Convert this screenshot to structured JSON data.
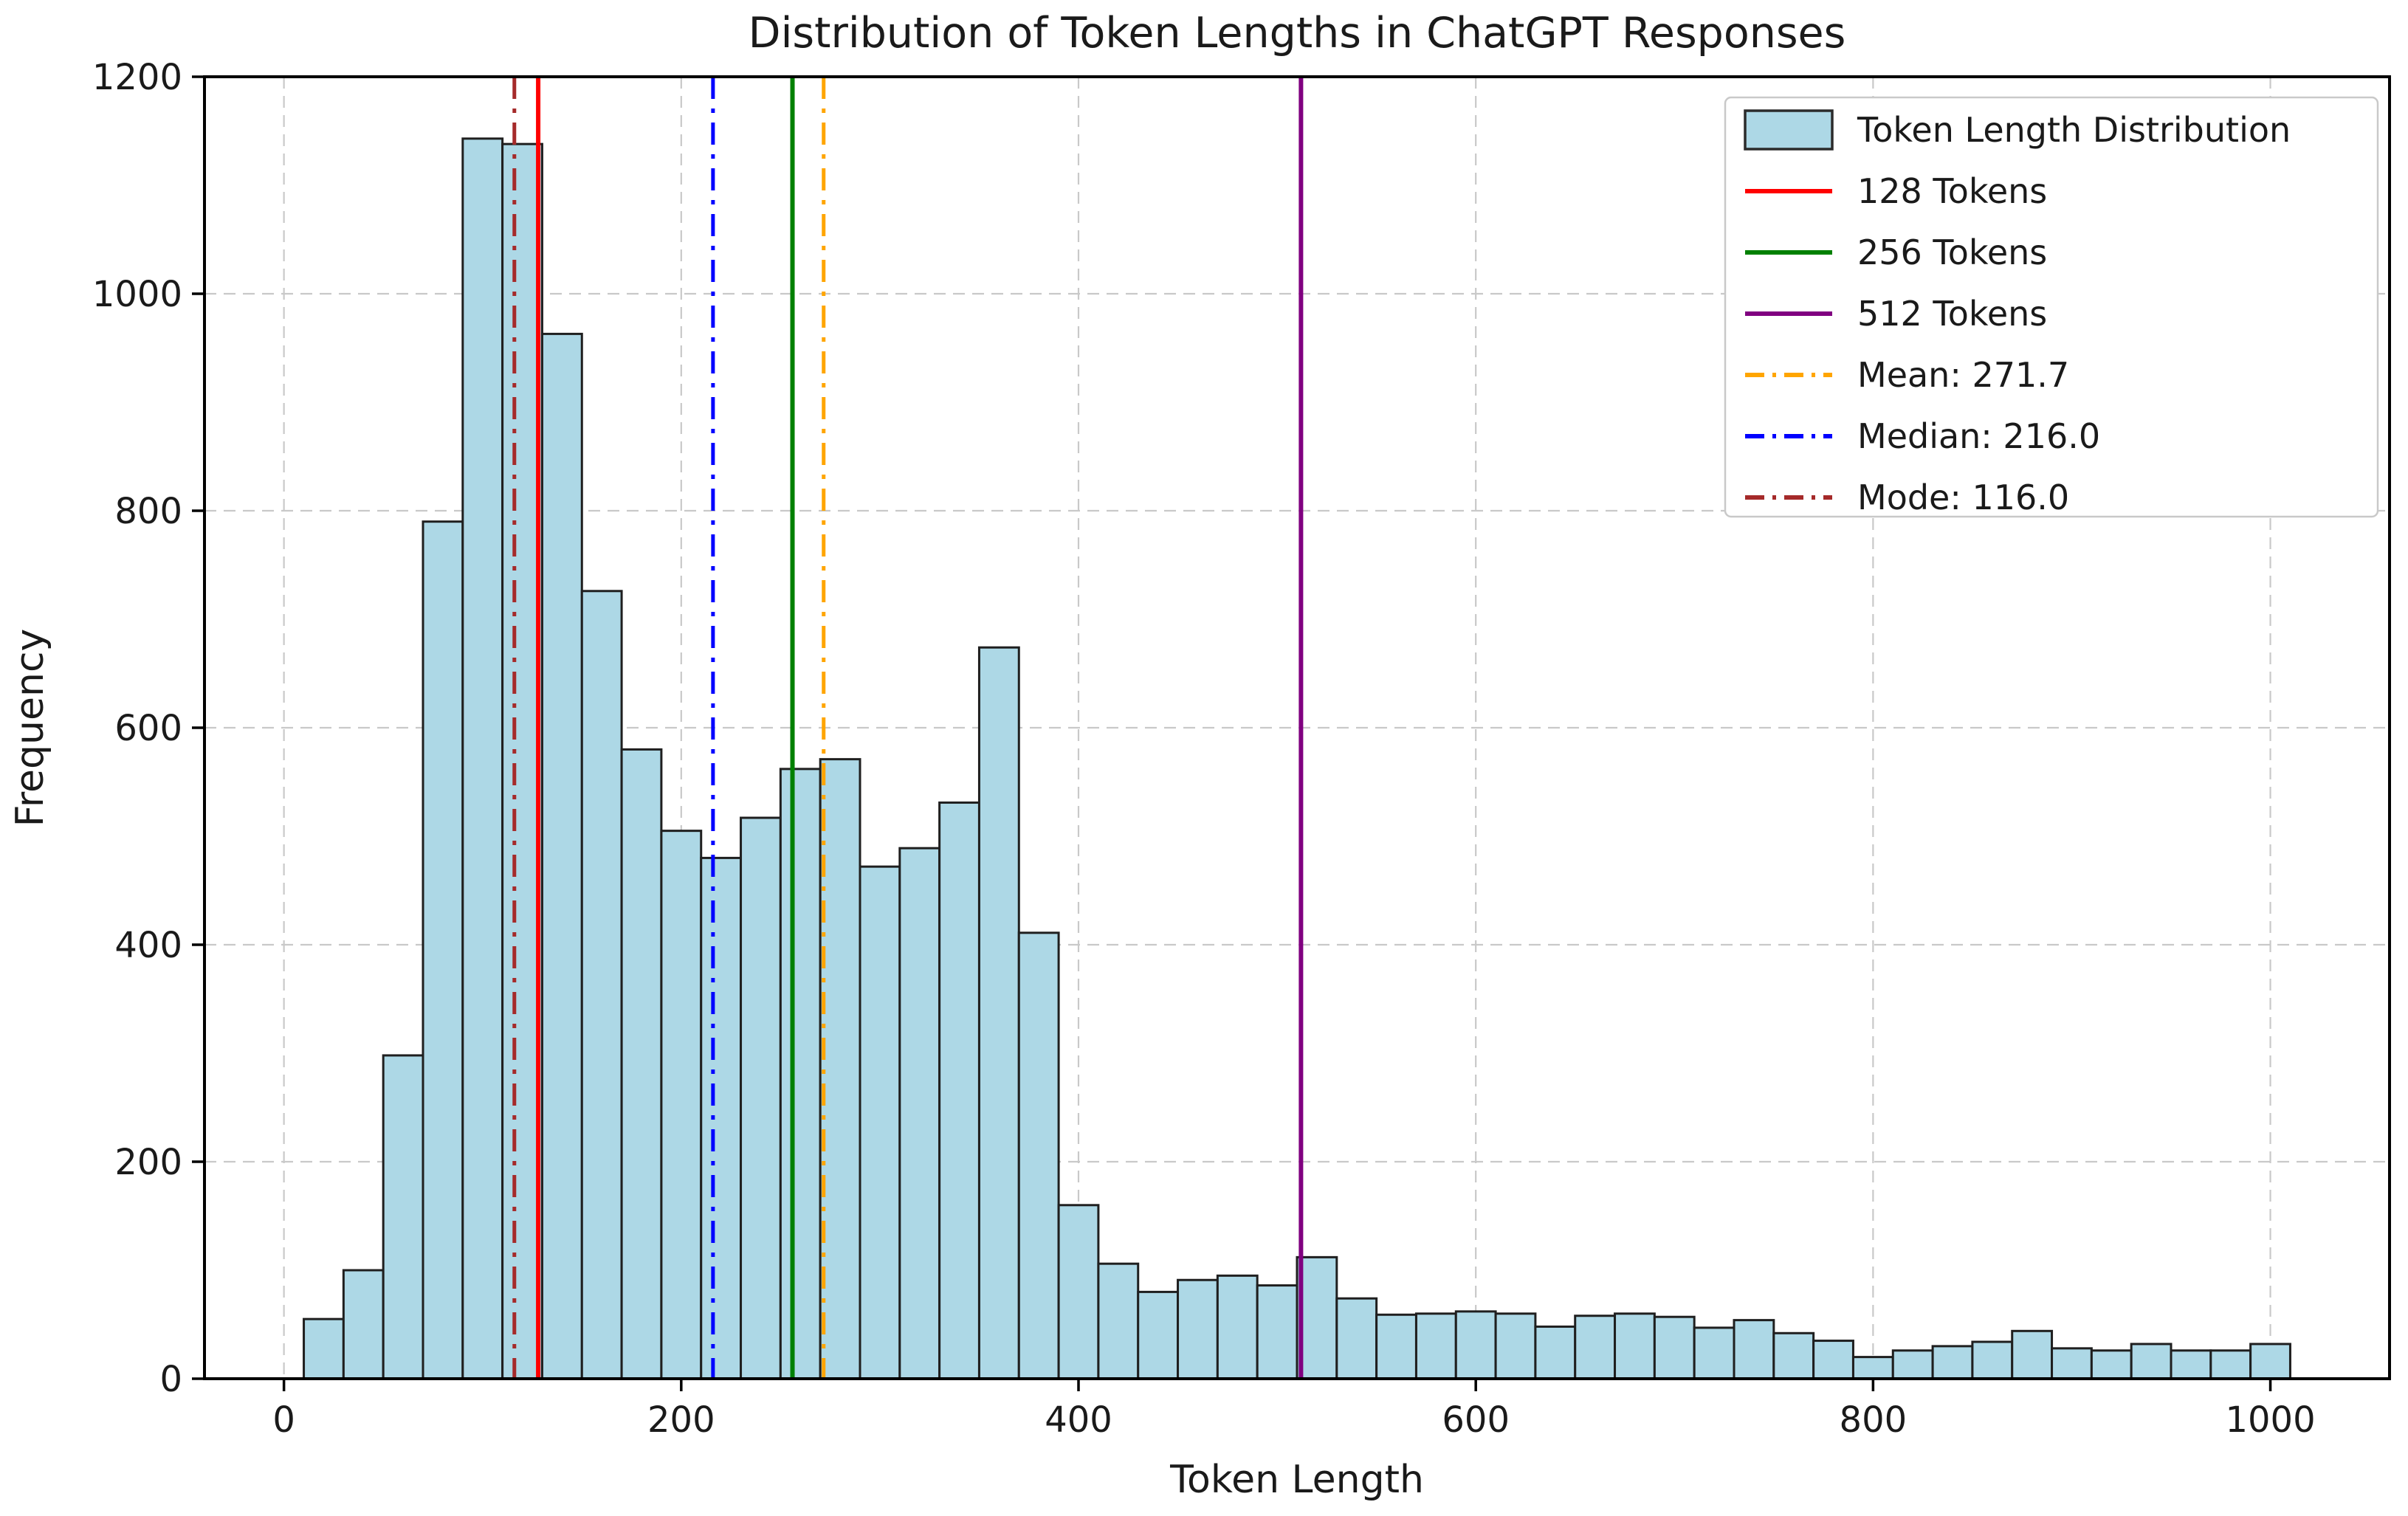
{
  "chart_data": {
    "type": "bar",
    "subtype": "histogram",
    "title": "Distribution of Token Lengths in ChatGPT Responses",
    "xlabel": "Token Length",
    "ylabel": "Frequency",
    "bin_start": 10,
    "bin_width": 20,
    "values": [
      55,
      100,
      298,
      790,
      1143,
      1138,
      963,
      726,
      580,
      505,
      480,
      517,
      562,
      571,
      472,
      489,
      531,
      674,
      411,
      160,
      106,
      80,
      91,
      95,
      86,
      112,
      74,
      59,
      60,
      62,
      60,
      48,
      58,
      60,
      57,
      47,
      54,
      42,
      35,
      20,
      26,
      30,
      34,
      44,
      28,
      26,
      32,
      26,
      26,
      32
    ],
    "xlim": [
      -40,
      1060
    ],
    "ylim": [
      0,
      1200
    ],
    "xticks": [
      0,
      200,
      400,
      600,
      800,
      1000
    ],
    "yticks": [
      0,
      200,
      400,
      600,
      800,
      1000,
      1200
    ],
    "grid": true,
    "grid_style": "dashed",
    "legend_position": "upper right",
    "colors": {
      "bar_fill": "#ADD8E6",
      "bar_edge": "#1f1f1f",
      "grid": "#c9c9c9",
      "axis": "#000000",
      "background": "#ffffff",
      "legend_border": "#c9c9c9"
    },
    "vlines": [
      {
        "label": "128 Tokens",
        "x": 128,
        "color": "#ff0000",
        "style": "solid"
      },
      {
        "label": "256 Tokens",
        "x": 256,
        "color": "#008000",
        "style": "solid"
      },
      {
        "label": "512 Tokens",
        "x": 512,
        "color": "#800080",
        "style": "solid"
      },
      {
        "label": "Mean: 271.7",
        "x": 271.7,
        "color": "#FFA500",
        "style": "dashdot"
      },
      {
        "label": "Median: 216.0",
        "x": 216.0,
        "color": "#0000FF",
        "style": "dashdot"
      },
      {
        "label": "Mode: 116.0",
        "x": 116.0,
        "color": "#A52A2A",
        "style": "dashdot"
      }
    ],
    "legend": [
      {
        "label": "Token Length Distribution",
        "swatch": "patch",
        "color": "#ADD8E6"
      },
      {
        "label": "128 Tokens",
        "swatch": "solid",
        "color": "#ff0000"
      },
      {
        "label": "256 Tokens",
        "swatch": "solid",
        "color": "#008000"
      },
      {
        "label": "512 Tokens",
        "swatch": "solid",
        "color": "#800080"
      },
      {
        "label": "Mean: 271.7",
        "swatch": "dashdot",
        "color": "#FFA500"
      },
      {
        "label": "Median: 216.0",
        "swatch": "dashdot",
        "color": "#0000FF"
      },
      {
        "label": "Mode: 116.0",
        "swatch": "dashdot",
        "color": "#A52A2A"
      }
    ]
  }
}
